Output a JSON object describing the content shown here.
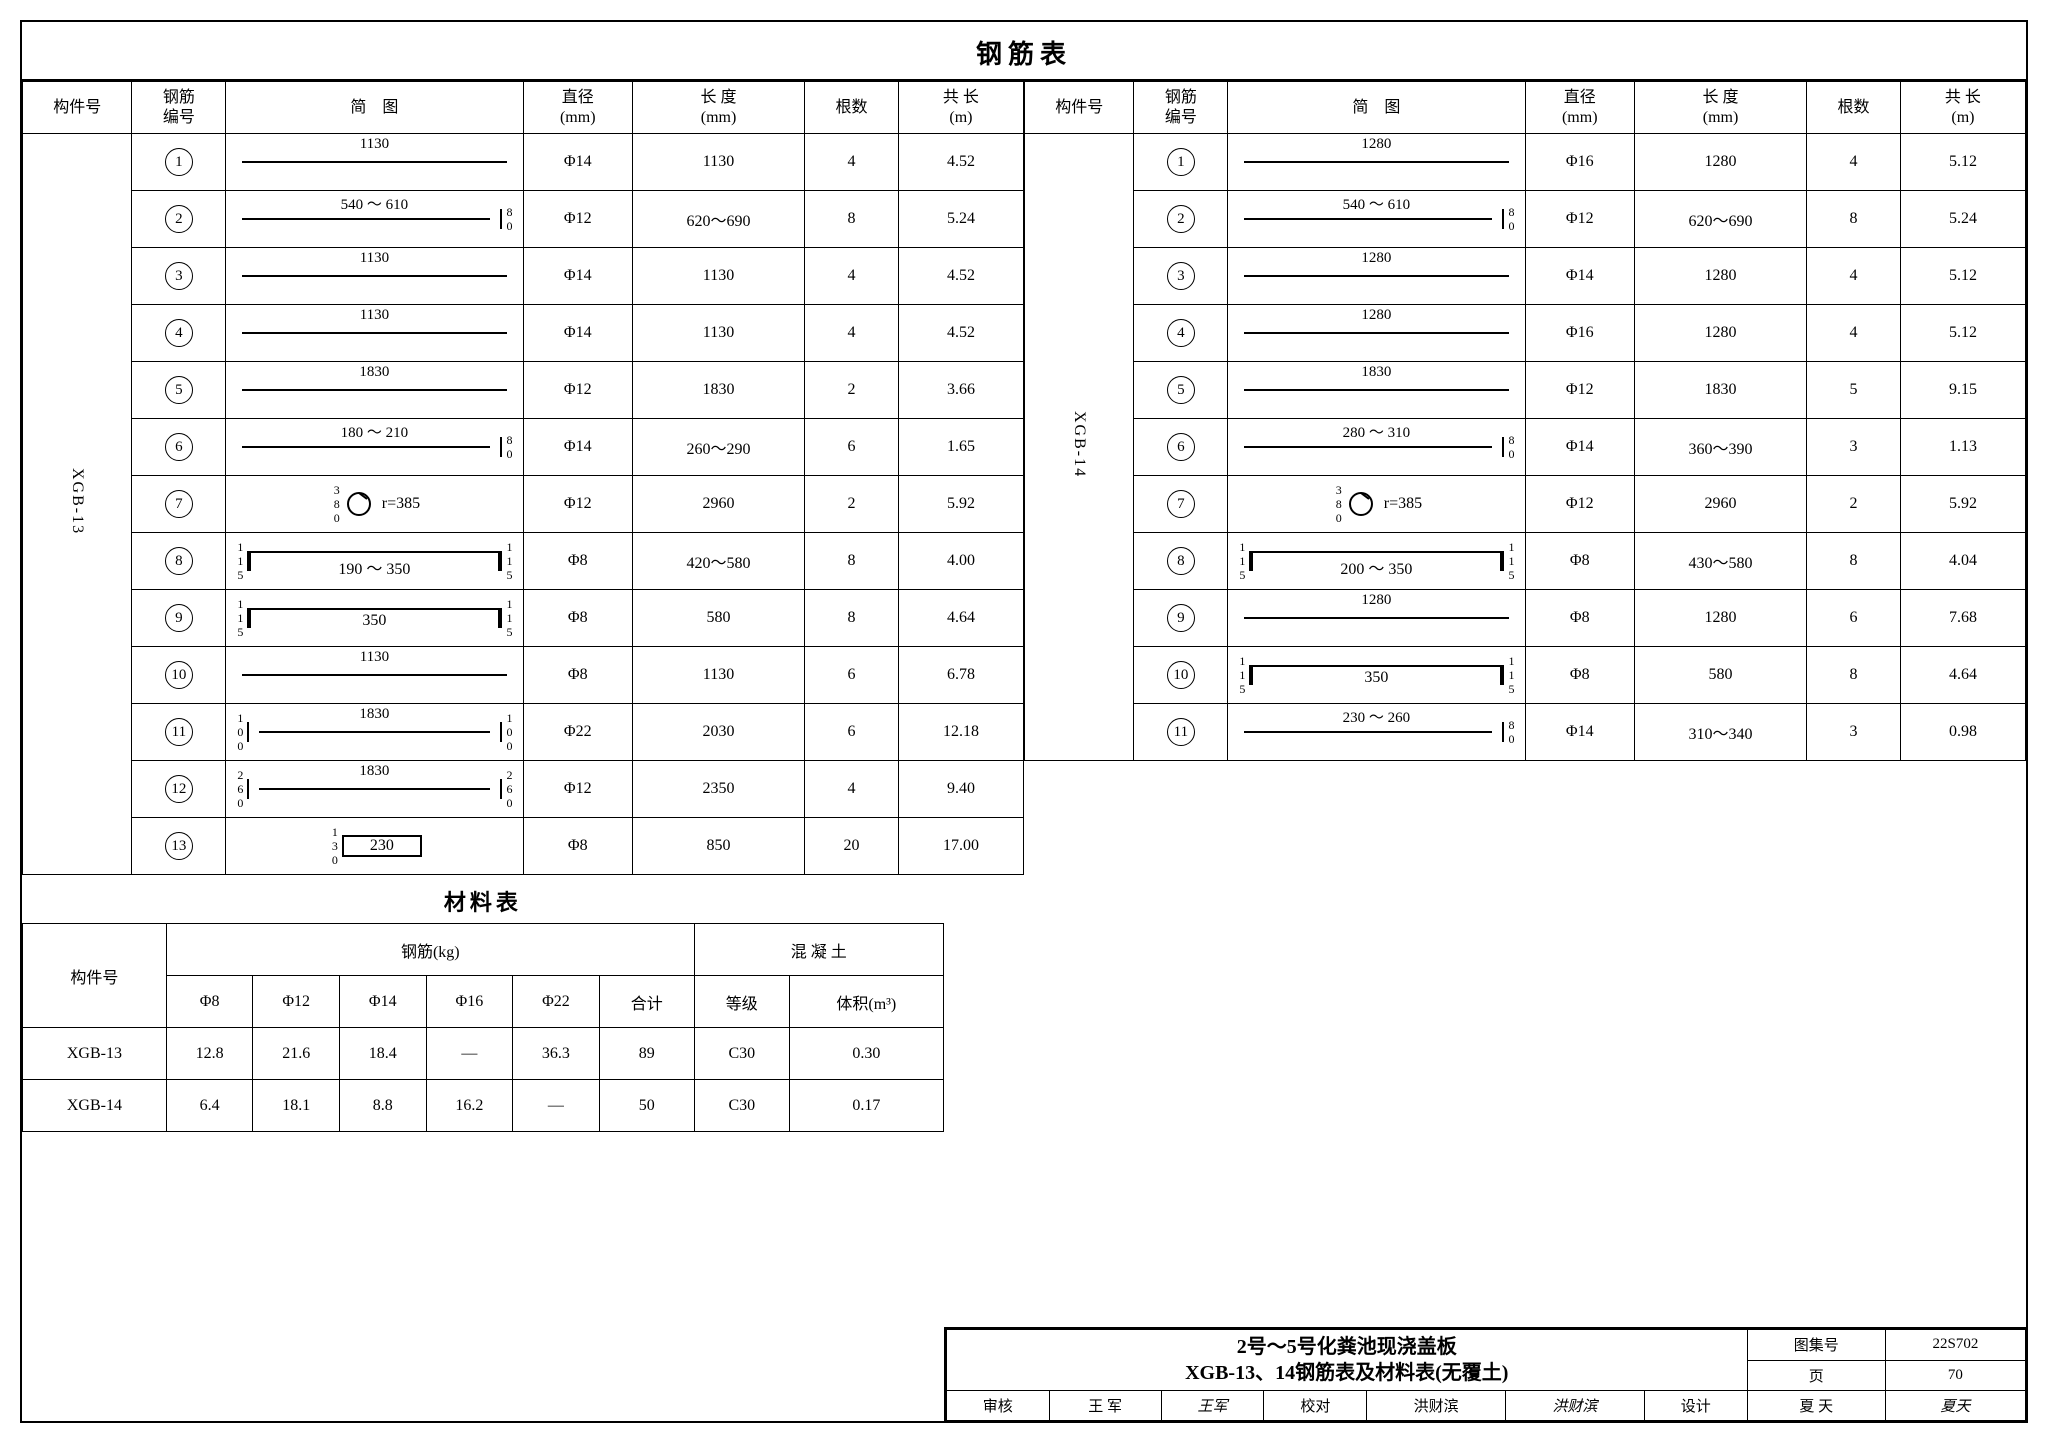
{
  "title": "钢筋表",
  "headers": {
    "component": "构件号",
    "rebar_no": "钢筋\n编号",
    "schematic": "简　图",
    "diameter": "直径\n(mm)",
    "length": "长 度\n(mm)",
    "qty": "根数",
    "total": "共 长\n(m)"
  },
  "left": {
    "component": "XGB-13",
    "rows": [
      {
        "n": "1",
        "schem_txt": "1130",
        "schem_type": "line",
        "dia": "Φ14",
        "len": "1130",
        "qty": "4",
        "tot": "4.52"
      },
      {
        "n": "2",
        "schem_txt": "540 ～ 610",
        "schem_type": "hookR",
        "side": "80",
        "dia": "Φ12",
        "len": "620～690",
        "qty": "8",
        "tot": "5.24"
      },
      {
        "n": "3",
        "schem_txt": "1130",
        "schem_type": "line",
        "dia": "Φ14",
        "len": "1130",
        "qty": "4",
        "tot": "4.52"
      },
      {
        "n": "4",
        "schem_txt": "1130",
        "schem_type": "line",
        "dia": "Φ14",
        "len": "1130",
        "qty": "4",
        "tot": "4.52"
      },
      {
        "n": "5",
        "schem_txt": "1830",
        "schem_type": "line",
        "dia": "Φ12",
        "len": "1830",
        "qty": "2",
        "tot": "3.66"
      },
      {
        "n": "6",
        "schem_txt": "180 ～ 210",
        "schem_type": "hookR",
        "side": "80",
        "dia": "Φ14",
        "len": "260～290",
        "qty": "6",
        "tot": "1.65"
      },
      {
        "n": "7",
        "schem_txt": "r=385",
        "schem_type": "ring",
        "side": "380",
        "dia": "Φ12",
        "len": "2960",
        "qty": "2",
        "tot": "5.92"
      },
      {
        "n": "8",
        "schem_txt": "190 ～ 350",
        "schem_type": "U",
        "side": "115",
        "dia": "Φ8",
        "len": "420～580",
        "qty": "8",
        "tot": "4.00"
      },
      {
        "n": "9",
        "schem_txt": "350",
        "schem_type": "U",
        "side": "115",
        "dia": "Φ8",
        "len": "580",
        "qty": "8",
        "tot": "4.64"
      },
      {
        "n": "10",
        "schem_txt": "1130",
        "schem_type": "line",
        "dia": "Φ8",
        "len": "1130",
        "qty": "6",
        "tot": "6.78"
      },
      {
        "n": "11",
        "schem_txt": "1830",
        "schem_type": "UU",
        "side": "100",
        "dia": "Φ22",
        "len": "2030",
        "qty": "6",
        "tot": "12.18"
      },
      {
        "n": "12",
        "schem_txt": "1830",
        "schem_type": "UU",
        "side": "260",
        "dia": "Φ12",
        "len": "2350",
        "qty": "4",
        "tot": "9.40"
      },
      {
        "n": "13",
        "schem_txt": "230",
        "schem_type": "hookBox",
        "side": "130",
        "dia": "Φ8",
        "len": "850",
        "qty": "20",
        "tot": "17.00"
      }
    ]
  },
  "right": {
    "component": "XGB-14",
    "rows": [
      {
        "n": "1",
        "schem_txt": "1280",
        "schem_type": "line",
        "dia": "Φ16",
        "len": "1280",
        "qty": "4",
        "tot": "5.12"
      },
      {
        "n": "2",
        "schem_txt": "540 ～ 610",
        "schem_type": "hookR",
        "side": "80",
        "dia": "Φ12",
        "len": "620～690",
        "qty": "8",
        "tot": "5.24"
      },
      {
        "n": "3",
        "schem_txt": "1280",
        "schem_type": "line",
        "dia": "Φ14",
        "len": "1280",
        "qty": "4",
        "tot": "5.12"
      },
      {
        "n": "4",
        "schem_txt": "1280",
        "schem_type": "line",
        "dia": "Φ16",
        "len": "1280",
        "qty": "4",
        "tot": "5.12"
      },
      {
        "n": "5",
        "schem_txt": "1830",
        "schem_type": "line",
        "dia": "Φ12",
        "len": "1830",
        "qty": "5",
        "tot": "9.15"
      },
      {
        "n": "6",
        "schem_txt": "280 ～ 310",
        "schem_type": "hookR",
        "side": "80",
        "dia": "Φ14",
        "len": "360～390",
        "qty": "3",
        "tot": "1.13"
      },
      {
        "n": "7",
        "schem_txt": "r=385",
        "schem_type": "ring",
        "side": "380",
        "dia": "Φ12",
        "len": "2960",
        "qty": "2",
        "tot": "5.92"
      },
      {
        "n": "8",
        "schem_txt": "200 ～ 350",
        "schem_type": "U",
        "side": "115",
        "dia": "Φ8",
        "len": "430～580",
        "qty": "8",
        "tot": "4.04"
      },
      {
        "n": "9",
        "schem_txt": "1280",
        "schem_type": "line",
        "dia": "Φ8",
        "len": "1280",
        "qty": "6",
        "tot": "7.68"
      },
      {
        "n": "10",
        "schem_txt": "350",
        "schem_type": "U",
        "side": "115",
        "dia": "Φ8",
        "len": "580",
        "qty": "8",
        "tot": "4.64"
      },
      {
        "n": "11",
        "schem_txt": "230 ～ 260",
        "schem_type": "hookR",
        "side": "80",
        "dia": "Φ14",
        "len": "310～340",
        "qty": "3",
        "tot": "0.98"
      }
    ]
  },
  "material": {
    "title": "材料表",
    "headers": {
      "component": "构件号",
      "rebar": "钢筋(kg)",
      "concrete": "混 凝 土",
      "phi8": "Φ8",
      "phi12": "Φ12",
      "phi14": "Φ14",
      "phi16": "Φ16",
      "phi22": "Φ22",
      "total": "合计",
      "grade": "等级",
      "vol": "体积(m³)"
    },
    "rows": [
      {
        "comp": "XGB-13",
        "v": [
          "12.8",
          "21.6",
          "18.4",
          "—",
          "36.3",
          "89",
          "C30",
          "0.30"
        ]
      },
      {
        "comp": "XGB-14",
        "v": [
          "6.4",
          "18.1",
          "8.8",
          "16.2",
          "—",
          "50",
          "C30",
          "0.17"
        ]
      }
    ]
  },
  "titleblock": {
    "line1": "2号～5号化粪池现浇盖板",
    "line2": "XGB-13、14钢筋表及材料表(无覆土)",
    "set_label": "图集号",
    "set_no": "22S702",
    "page_label": "页",
    "page_no": "70",
    "review_l": "审核",
    "review_n": "王 军",
    "check_l": "校对",
    "check_n": "洪财滨",
    "design_l": "设计",
    "design_n": "夏 天"
  }
}
